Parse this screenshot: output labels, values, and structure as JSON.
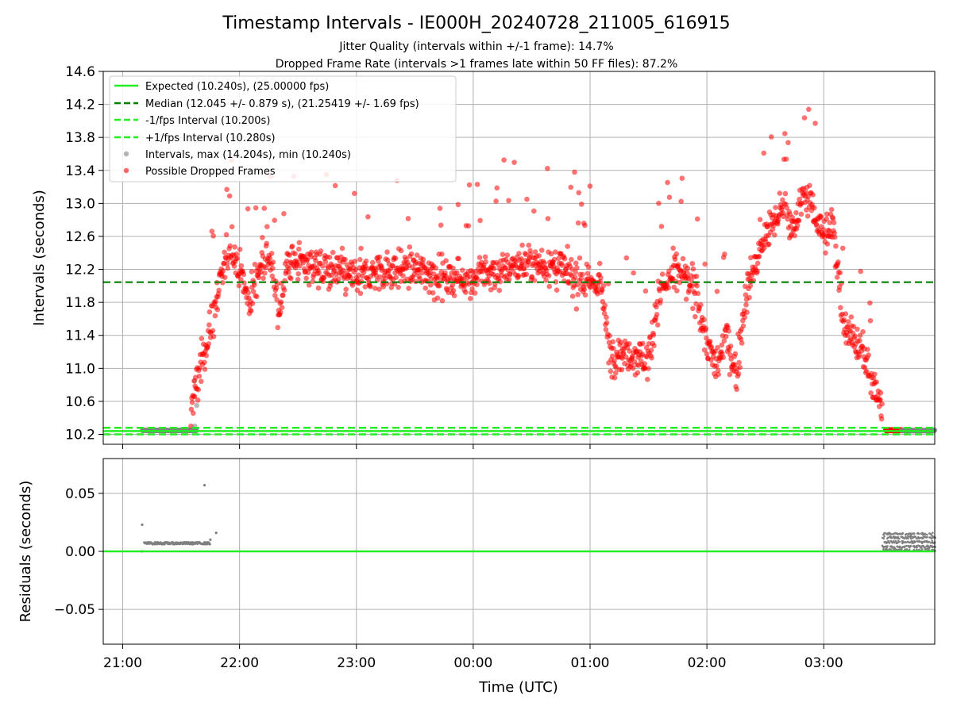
{
  "chart_data": [
    {
      "type": "scatter",
      "title": "Timestamp Intervals - IE000H_20240728_211005_616915",
      "subtitle_lines": [
        "Jitter Quality (intervals within +/-1 frame): 14.7%",
        "Dropped Frame Rate (intervals >1 frames late within 50 FF files): 87.2%"
      ],
      "ylabel": "Intervals (seconds)",
      "xlabel": "",
      "xlim": [
        "20:50",
        "03:57"
      ],
      "ylim": [
        10.08,
        14.6
      ],
      "yticks": [
        "10.2",
        "10.6",
        "11.0",
        "11.4",
        "11.8",
        "12.2",
        "12.6",
        "13.0",
        "13.4",
        "13.8",
        "14.2",
        "14.6"
      ],
      "grid": true,
      "legend_position": "upper-left",
      "colors": {
        "expected": "#22ee22",
        "median": "#008000",
        "fps_interval": "#22ee22",
        "intervals": "#808080",
        "dropped": "#ff0000"
      },
      "series": [
        {
          "name": "Expected (10.240s), (25.00000 fps)",
          "style": "solid-line",
          "y": 10.24
        },
        {
          "name": "Median (12.045 +/- 0.879 s), (21.25419 +/- 1.69 fps)",
          "style": "dashed-line",
          "y": 12.045
        },
        {
          "name": "-1/fps Interval (10.200s)",
          "style": "dashed-line",
          "y": 10.2
        },
        {
          "name": "+1/fps Interval (10.280s)",
          "style": "dashed-line",
          "y": 10.28
        },
        {
          "name": "Intervals, max (14.204s), min (10.240s)",
          "style": "points",
          "max": 14.204,
          "min": 10.24
        },
        {
          "name": "Possible Dropped Frames",
          "style": "points",
          "trend_points": [
            [
              "21:35",
              10.5
            ],
            [
              "21:40",
              11.0
            ],
            [
              "21:45",
              11.5
            ],
            [
              "21:50",
              12.0
            ],
            [
              "21:55",
              12.5
            ],
            [
              "22:00",
              12.2
            ],
            [
              "22:05",
              11.8
            ],
            [
              "22:10",
              12.2
            ],
            [
              "22:15",
              12.4
            ],
            [
              "22:20",
              11.7
            ],
            [
              "22:25",
              12.3
            ],
            [
              "22:30",
              12.3
            ],
            [
              "22:45",
              12.2
            ],
            [
              "23:00",
              12.1
            ],
            [
              "23:15",
              12.2
            ],
            [
              "23:30",
              12.2
            ],
            [
              "23:45",
              12.1
            ],
            [
              "00:00",
              12.1
            ],
            [
              "00:15",
              12.2
            ],
            [
              "00:30",
              12.3
            ],
            [
              "00:45",
              12.2
            ],
            [
              "01:00",
              12.0
            ],
            [
              "01:05",
              12.1
            ],
            [
              "01:10",
              11.2
            ],
            [
              "01:20",
              11.2
            ],
            [
              "01:30",
              11.1
            ],
            [
              "01:35",
              11.9
            ],
            [
              "01:45",
              12.2
            ],
            [
              "01:55",
              11.9
            ],
            [
              "02:00",
              11.3
            ],
            [
              "02:05",
              11.0
            ],
            [
              "02:10",
              11.4
            ],
            [
              "02:15",
              10.9
            ],
            [
              "02:20",
              11.9
            ],
            [
              "02:30",
              12.6
            ],
            [
              "02:40",
              13.0
            ],
            [
              "02:45",
              12.6
            ],
            [
              "02:50",
              13.2
            ],
            [
              "03:00",
              12.6
            ],
            [
              "03:05",
              12.7
            ],
            [
              "03:10",
              11.6
            ],
            [
              "03:15",
              11.4
            ],
            [
              "03:20",
              11.2
            ],
            [
              "03:25",
              10.8
            ],
            [
              "03:30",
              10.5
            ]
          ]
        }
      ]
    },
    {
      "type": "scatter",
      "ylabel": "Residuals (seconds)",
      "xlabel": "Time (UTC)",
      "xlim": [
        "20:50",
        "03:57"
      ],
      "ylim": [
        -0.08,
        0.08
      ],
      "yticks": [
        "0.05",
        "0.00",
        "−0.05"
      ],
      "xticks": [
        "21:00",
        "22:00",
        "23:00",
        "00:00",
        "01:00",
        "02:00",
        "03:00"
      ],
      "grid": true,
      "series": [
        {
          "style": "line",
          "y": 0.0,
          "color": "#22ee22"
        },
        {
          "style": "points",
          "color": "#808080",
          "clusters": [
            {
              "x_range": [
                "21:10",
                "21:45"
              ],
              "typical_y": 0.007,
              "outliers": [
                [
                  "21:10",
                  0.023
                ],
                [
                  "21:10",
                  0.0
                ],
                [
                  "21:42",
                  0.057
                ],
                [
                  "21:45",
                  0.01
                ],
                [
                  "21:48",
                  0.016
                ]
              ]
            },
            {
              "x_range": [
                "03:30",
                "03:57"
              ],
              "typical_y": [
                0.0,
                0.016
              ]
            }
          ]
        }
      ]
    }
  ]
}
